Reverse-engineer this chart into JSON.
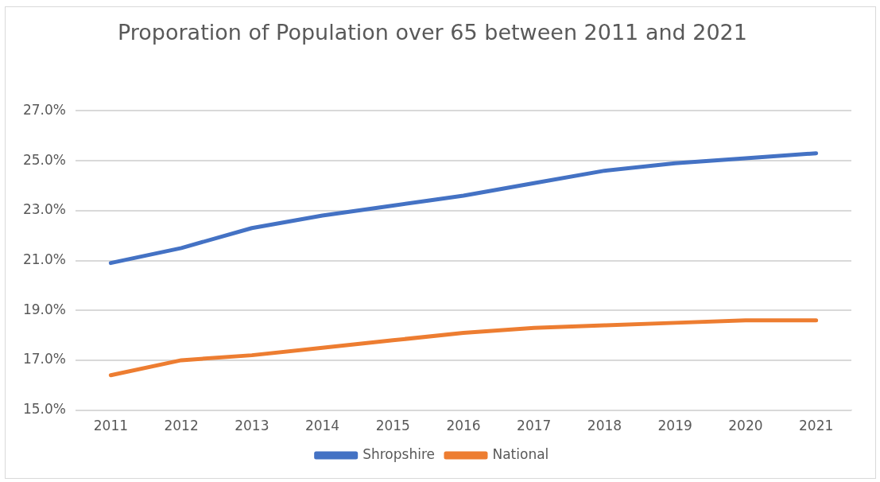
{
  "chart_data": {
    "type": "line",
    "title": "Proporation of Population over 65 between 2011 and 2021",
    "categories": [
      "2011",
      "2012",
      "2013",
      "2014",
      "2015",
      "2016",
      "2017",
      "2018",
      "2019",
      "2020",
      "2021"
    ],
    "series": [
      {
        "name": "Shropshire",
        "color": "#4472c4",
        "values": [
          20.9,
          21.5,
          22.3,
          22.8,
          23.2,
          23.6,
          24.1,
          24.6,
          24.9,
          25.1,
          25.3
        ]
      },
      {
        "name": "National",
        "color": "#ed7d31",
        "values": [
          16.4,
          17.0,
          17.2,
          17.5,
          17.8,
          18.1,
          18.3,
          18.4,
          18.5,
          18.6,
          18.6
        ]
      }
    ],
    "ylim": [
      15,
      27
    ],
    "yticks": [
      {
        "value": 15,
        "label": "15.0%"
      },
      {
        "value": 17,
        "label": "17.0%"
      },
      {
        "value": 19,
        "label": "19.0%"
      },
      {
        "value": 21,
        "label": "21.0%"
      },
      {
        "value": 23,
        "label": "23.0%"
      },
      {
        "value": 25,
        "label": "25.0%"
      },
      {
        "value": 27,
        "label": "27.0%"
      }
    ],
    "grid": "y",
    "legend": "bottom",
    "marker": "none",
    "line_style": "solid"
  }
}
